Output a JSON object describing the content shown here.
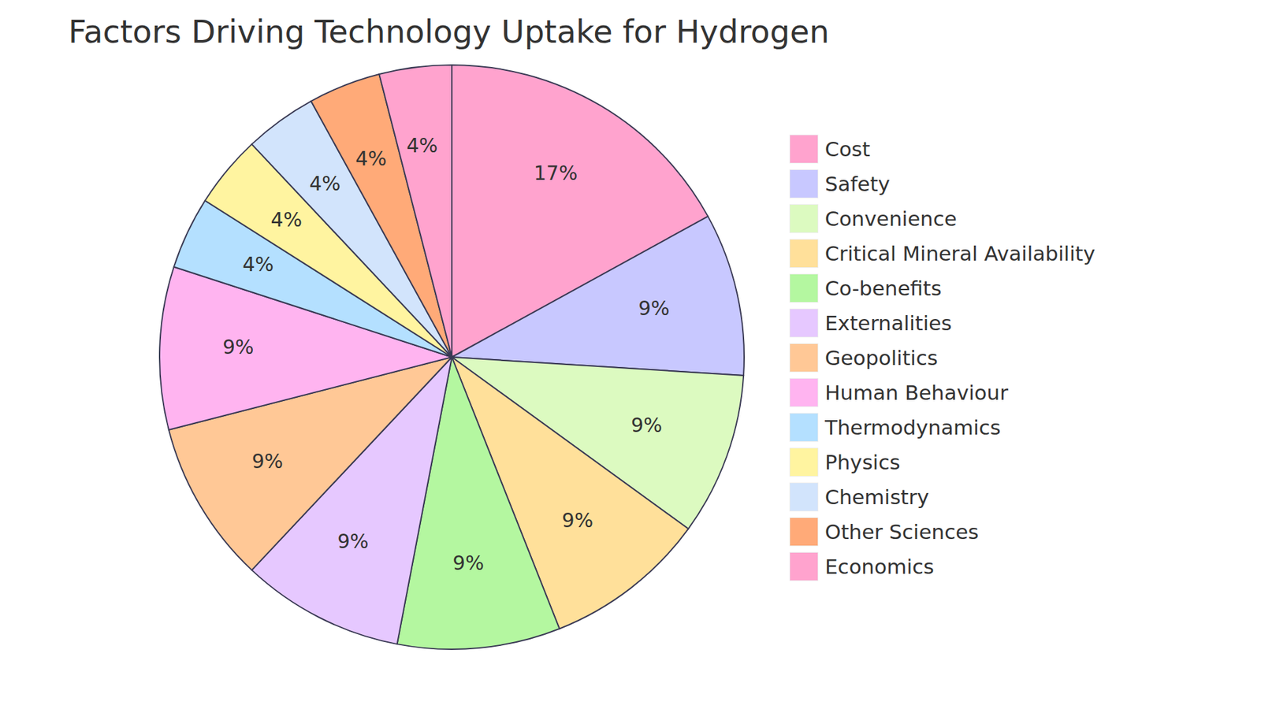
{
  "chart_data": {
    "type": "pie",
    "title": "Factors Driving Technology Uptake for Hydrogen",
    "categories": [
      "Cost",
      "Safety",
      "Convenience",
      "Critical Mineral Availability",
      "Co-benefits",
      "Externalities",
      "Geopolitics",
      "Human Behaviour",
      "Thermodynamics",
      "Physics",
      "Chemistry",
      "Other Sciences",
      "Economics"
    ],
    "values": [
      17,
      9,
      9,
      9,
      9,
      9,
      9,
      9,
      4,
      4,
      4,
      4,
      4
    ],
    "value_labels": [
      "17%",
      "9%",
      "9%",
      "9%",
      "9%",
      "9%",
      "9%",
      "9%",
      "4%",
      "4%",
      "4%",
      "4%",
      "4%"
    ],
    "colors": [
      "#ffa3ce",
      "#c8c8ff",
      "#dcfac0",
      "#ffe09a",
      "#b4f7a0",
      "#e6c8ff",
      "#ffc896",
      "#ffb4f0",
      "#b4e0ff",
      "#fff4a0",
      "#d2e4fc",
      "#ffaa78",
      "#ffa3ce"
    ],
    "data_labels": true,
    "legend": "right"
  }
}
